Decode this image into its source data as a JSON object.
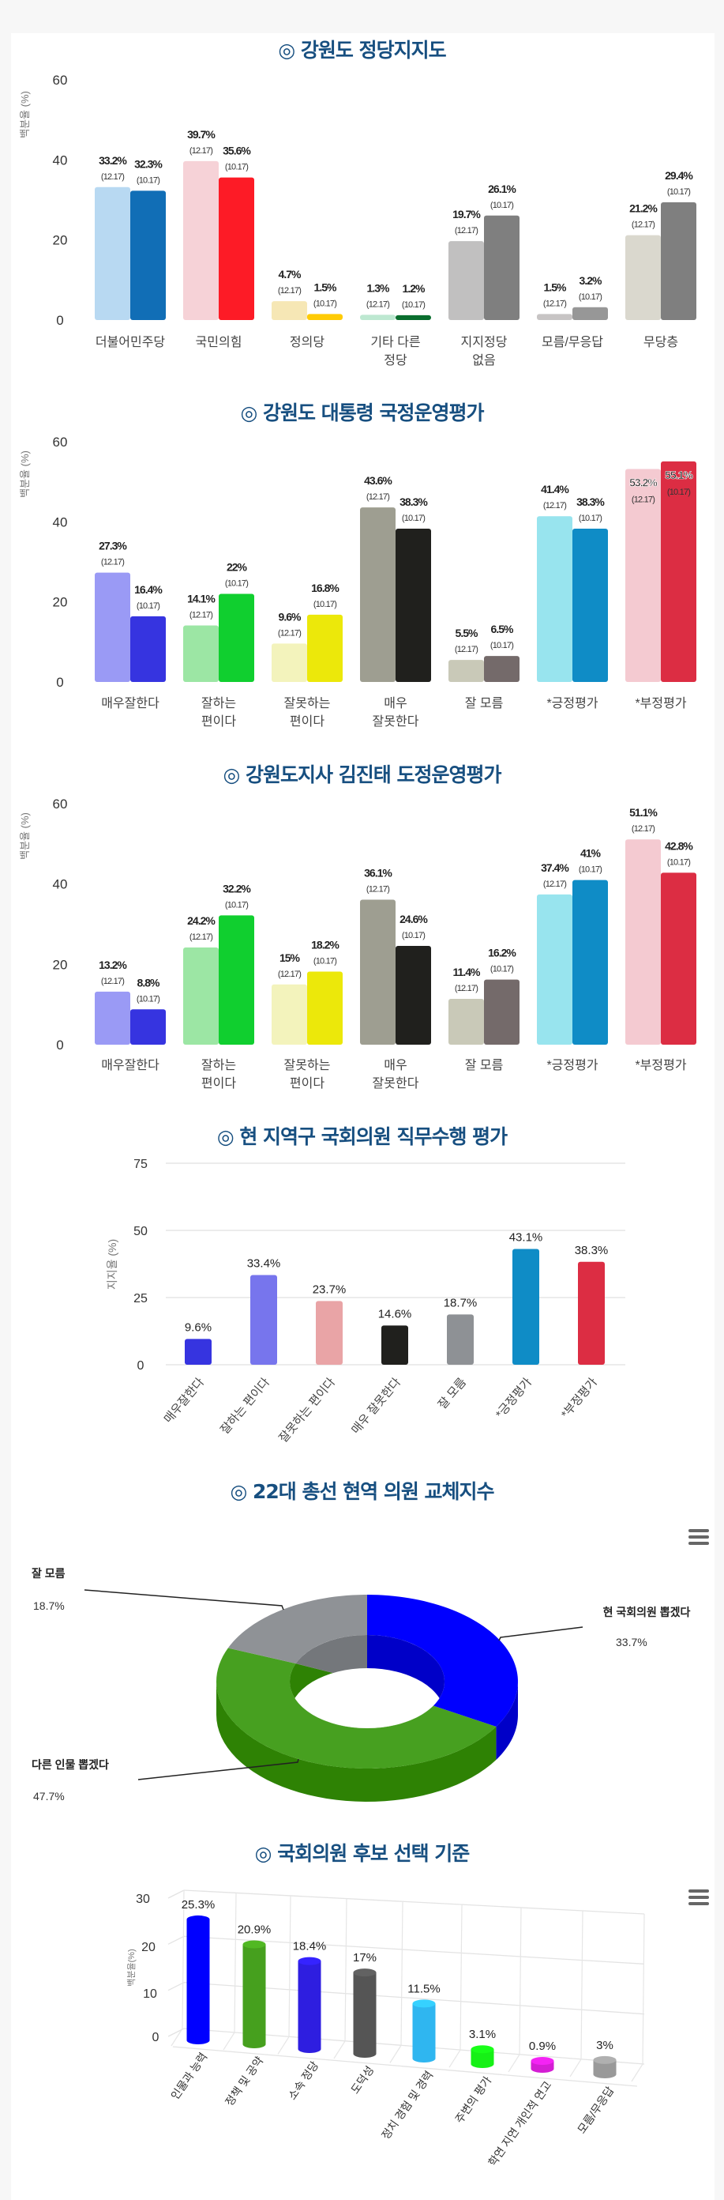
{
  "chart_data": [
    {
      "type": "bar",
      "title": "◎ 강원도 정당지지도",
      "ylabel": "백분율 (%)",
      "ylim": [
        0,
        60
      ],
      "yticks": [
        0,
        20,
        40,
        60
      ],
      "categories": [
        "더불어민주당",
        "국민의힘",
        "정의당",
        "기타 다른\n정당",
        "지지정당\n없음",
        "모름/무응답",
        "무당층"
      ],
      "series": [
        {
          "name": "(12.17)",
          "values": [
            33.2,
            39.7,
            4.7,
            1.3,
            19.7,
            1.5,
            21.2
          ],
          "colors": [
            "#b8d9f2",
            "#f6d2d7",
            "#f6e7b5",
            "#bde8d1",
            "#c1c0c0",
            "#c7c4c4",
            "#dad8ce"
          ]
        },
        {
          "name": "(10.17)",
          "values": [
            32.3,
            35.6,
            1.5,
            1.2,
            26.1,
            3.2,
            29.4
          ],
          "colors": [
            "#116eb6",
            "#fd1b26",
            "#ffcb05",
            "#0a6e2e",
            "#7f7f7f",
            "#979797",
            "#7f7f7f"
          ]
        }
      ]
    },
    {
      "type": "bar",
      "title": "◎ 강원도 대통령 국정운영평가",
      "ylabel": "백분율 (%)",
      "ylim": [
        0,
        60
      ],
      "yticks": [
        0,
        20,
        40,
        60
      ],
      "categories": [
        "매우잘한다",
        "잘하는\n편이다",
        "잘못하는\n편이다",
        "매우\n잘못한다",
        "잘 모름",
        "*긍정평가",
        "*부정평가"
      ],
      "series": [
        {
          "name": "(12.17)",
          "values": [
            27.3,
            14.1,
            9.6,
            43.6,
            5.5,
            41.4,
            53.2
          ],
          "colors": [
            "#9a9af5",
            "#9ce6a4",
            "#f3f3bc",
            "#9e9e91",
            "#c9c9b8",
            "#98e4ee",
            "#f4cad1"
          ]
        },
        {
          "name": "(10.17)",
          "values": [
            16.4,
            22,
            16.8,
            38.3,
            6.5,
            38.3,
            55.1
          ],
          "colors": [
            "#3634e0",
            "#10cf2f",
            "#ece80a",
            "#20201d",
            "#746a6a",
            "#0f8cc6",
            "#dc2d43"
          ]
        }
      ]
    },
    {
      "type": "bar",
      "title": "◎ 강원도지사 김진태 도정운영평가",
      "ylabel": "백분율 (%)",
      "ylim": [
        0,
        60
      ],
      "yticks": [
        0,
        20,
        40,
        60
      ],
      "categories": [
        "매우잘한다",
        "잘하는\n편이다",
        "잘못하는\n편이다",
        "매우\n잘못한다",
        "잘 모름",
        "*긍정평가",
        "*부정평가"
      ],
      "series": [
        {
          "name": "(12.17)",
          "values": [
            13.2,
            24.2,
            15,
            36.1,
            11.4,
            37.4,
            51.1
          ],
          "colors": [
            "#9a9af5",
            "#9ce6a4",
            "#f3f3bc",
            "#9e9e91",
            "#c9c9b8",
            "#98e4ee",
            "#f4cad1"
          ]
        },
        {
          "name": "(10.17)",
          "values": [
            8.8,
            32.2,
            18.2,
            24.6,
            16.2,
            41,
            42.8
          ],
          "colors": [
            "#3634e0",
            "#10cf2f",
            "#ece80a",
            "#20201d",
            "#746a6a",
            "#0f8cc6",
            "#dc2d43"
          ]
        }
      ]
    },
    {
      "type": "bar",
      "title": "◎ 현 지역구 국회의원 직무수행 평가",
      "ylabel": "지지율 (%)",
      "ylim": [
        0,
        75
      ],
      "yticks": [
        0,
        25,
        50,
        75
      ],
      "grid": true,
      "categories": [
        "매우잘한다",
        "잘하는 편이다",
        "잘못하는 편이다",
        "매우 잘못한다",
        "잘 모름",
        "*긍정평가",
        "*부정평가"
      ],
      "values": [
        9.6,
        33.4,
        23.7,
        14.6,
        18.7,
        43.1,
        38.3
      ],
      "colors": [
        "#3634e0",
        "#7775ed",
        "#e9a4a6",
        "#20201d",
        "#8e9195",
        "#0f8cc6",
        "#dc2d43"
      ]
    },
    {
      "type": "pie",
      "title": "◎ 22대 총선 현역 의원 교체지수",
      "slices": [
        {
          "label": "현 국회의원 뽑겠다",
          "value": 33.7,
          "color": "#0000ff",
          "wall": "#0000c8"
        },
        {
          "label": "다른 인물 뽑겠다",
          "value": 47.7,
          "color": "#47a020",
          "wall": "#2e8204"
        },
        {
          "label": "잘 모름",
          "value": 18.7,
          "color": "#8f9296",
          "wall": "#74777b"
        }
      ]
    },
    {
      "type": "bar",
      "title": "◎ 국회의원 후보 선택 기준",
      "ylabel": "백분율(%)",
      "ylim": [
        0,
        30
      ],
      "yticks": [
        0,
        10,
        20,
        30
      ],
      "grid": true,
      "categories": [
        "인물과 능력",
        "정책 및 공약",
        "소속 정당",
        "도덕성",
        "정치 경험 및 경력",
        "주변의 평가",
        "학연 지연 개인적 연고",
        "모름/무응답"
      ],
      "values": [
        25.3,
        20.9,
        18.4,
        17,
        11.5,
        3.1,
        0.9,
        3
      ],
      "colors": [
        "#0000ff",
        "#46a01e",
        "#2e1ee0",
        "#555555",
        "#2fb6f0",
        "#16f016",
        "#d41ed4",
        "#999999"
      ]
    }
  ]
}
